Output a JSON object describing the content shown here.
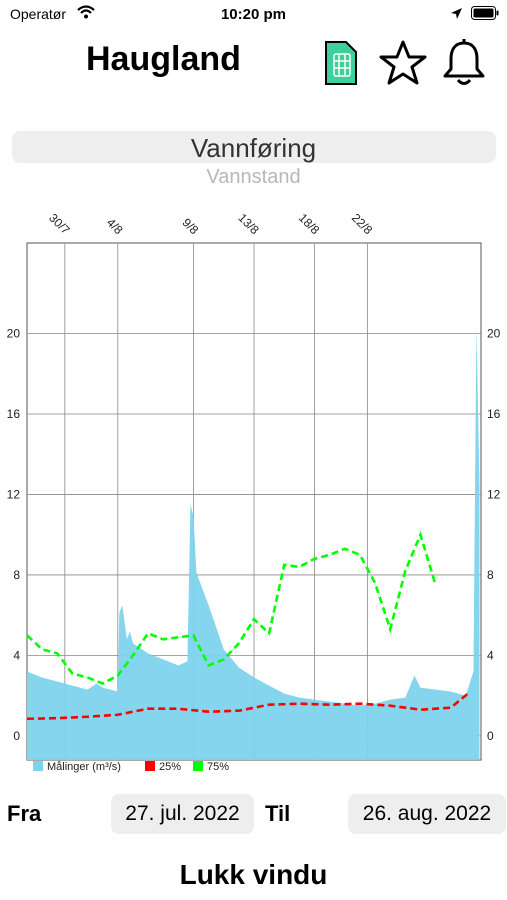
{
  "status": {
    "carrier": "Operatør",
    "time": "10:20 pm"
  },
  "header": {
    "title": "Haugland",
    "icons": [
      "sim-card-icon",
      "star-icon",
      "bell-icon"
    ],
    "icon_color": "#3ecf9c"
  },
  "selector": {
    "selected": "Vannføring",
    "next": "Vannstand"
  },
  "chart_data": {
    "type": "area",
    "x_ticks": [
      "30/7",
      "4/8",
      "9/8",
      "13/8",
      "18/8",
      "22/8"
    ],
    "y_ticks": [
      "0",
      "4",
      "8",
      "12",
      "16",
      "20"
    ],
    "ylim": [
      -1.2,
      24.5
    ],
    "grid": true,
    "legend": {
      "position": "bottom-left",
      "items": [
        {
          "label": "Målinger (m³/s)",
          "color": "#7dd3ec"
        },
        {
          "label": "25%",
          "color": "#ff0000"
        },
        {
          "label": "75%",
          "color": "#00ff00"
        }
      ]
    },
    "series": [
      {
        "name": "Målinger (m³/s)",
        "color": "#7dd3ec",
        "points": [
          [
            0,
            3.2
          ],
          [
            1,
            2.9
          ],
          [
            2,
            2.7
          ],
          [
            3,
            2.5
          ],
          [
            4,
            2.3
          ],
          [
            4.6,
            2.6
          ],
          [
            5,
            2.4
          ],
          [
            6,
            2.2
          ],
          [
            6.1,
            6.1
          ],
          [
            6.3,
            6.5
          ],
          [
            6.6,
            4.8
          ],
          [
            6.8,
            5.2
          ],
          [
            7,
            4.6
          ],
          [
            8,
            4.1
          ],
          [
            9,
            3.8
          ],
          [
            10,
            3.5
          ],
          [
            10.6,
            3.7
          ],
          [
            10.8,
            11.5
          ],
          [
            11,
            10.9
          ],
          [
            11.2,
            8.1
          ],
          [
            12,
            6.5
          ],
          [
            13,
            4.3
          ],
          [
            14,
            3.4
          ],
          [
            15,
            2.9
          ],
          [
            16,
            2.5
          ],
          [
            17,
            2.1
          ],
          [
            18,
            1.9
          ],
          [
            19,
            1.8
          ],
          [
            20,
            1.7
          ],
          [
            21,
            1.6
          ],
          [
            22,
            1.5
          ],
          [
            23,
            1.6
          ],
          [
            24,
            1.8
          ],
          [
            25,
            1.9
          ],
          [
            25.6,
            3.0
          ],
          [
            26,
            2.4
          ],
          [
            27,
            2.3
          ],
          [
            28,
            2.2
          ],
          [
            29,
            2.0
          ],
          [
            29.5,
            3.2
          ],
          [
            29.7,
            20.4
          ],
          [
            29.9,
            12.5
          ]
        ]
      },
      {
        "name": "25%",
        "color": "#ff0000",
        "points": [
          [
            0,
            0.85
          ],
          [
            2,
            0.88
          ],
          [
            4,
            0.95
          ],
          [
            6,
            1.05
          ],
          [
            8,
            1.35
          ],
          [
            10,
            1.35
          ],
          [
            12,
            1.2
          ],
          [
            14,
            1.25
          ],
          [
            16,
            1.55
          ],
          [
            18,
            1.6
          ],
          [
            20,
            1.55
          ],
          [
            22,
            1.6
          ],
          [
            24,
            1.5
          ],
          [
            26,
            1.3
          ],
          [
            28,
            1.4
          ],
          [
            29.3,
            2.2
          ]
        ]
      },
      {
        "name": "75%",
        "color": "#00ff00",
        "points": [
          [
            0,
            5.0
          ],
          [
            1,
            4.3
          ],
          [
            2,
            4.1
          ],
          [
            3,
            3.1
          ],
          [
            4,
            2.9
          ],
          [
            5,
            2.6
          ],
          [
            6,
            3.0
          ],
          [
            7,
            4.0
          ],
          [
            8,
            5.1
          ],
          [
            9,
            4.8
          ],
          [
            10,
            4.9
          ],
          [
            11,
            5.0
          ],
          [
            12,
            3.5
          ],
          [
            13,
            3.8
          ],
          [
            14,
            4.6
          ],
          [
            15,
            5.8
          ],
          [
            16,
            5.1
          ],
          [
            17,
            8.5
          ],
          [
            18,
            8.4
          ],
          [
            19,
            8.8
          ],
          [
            20,
            9.0
          ],
          [
            21,
            9.3
          ],
          [
            22,
            9.0
          ],
          [
            23,
            7.6
          ],
          [
            24,
            5.3
          ],
          [
            25,
            8.2
          ],
          [
            26,
            10.0
          ],
          [
            27,
            7.5
          ]
        ]
      }
    ]
  },
  "dates": {
    "from_label": "Fra",
    "from_value": "27. jul. 2022",
    "to_label": "Til",
    "to_value": "26. aug. 2022"
  },
  "close_label": "Lukk vindu"
}
